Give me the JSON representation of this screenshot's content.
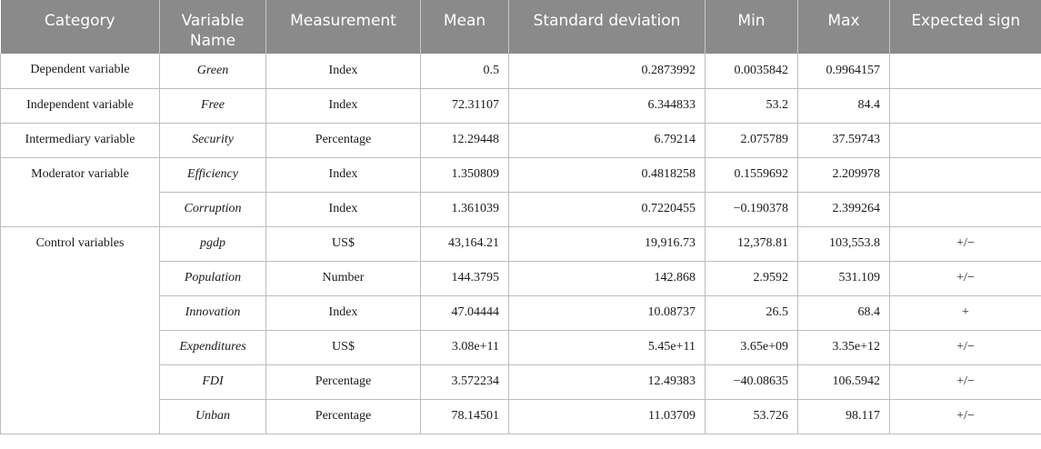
{
  "headers": {
    "category": "Category",
    "variable_name": "Variable Name",
    "measurement": "Measurement",
    "mean": "Mean",
    "std": "Standard deviation",
    "min": "Min",
    "max": "Max",
    "expected_sign": "Expected sign"
  },
  "categories": {
    "dependent": "Dependent variable",
    "independent": "Independent variable",
    "intermediary": "Intermediary variable",
    "moderator": "Moderator variable",
    "control": "Control variables"
  },
  "rows": [
    {
      "name": "Green",
      "measurement": "Index",
      "mean": "0.5",
      "std": "0.2873992",
      "min": "0.0035842",
      "max": "0.9964157",
      "sign": ""
    },
    {
      "name": "Free",
      "measurement": "Index",
      "mean": "72.31107",
      "std": "6.344833",
      "min": "53.2",
      "max": "84.4",
      "sign": ""
    },
    {
      "name": "Security",
      "measurement": "Percentage",
      "mean": "12.29448",
      "std": "6.79214",
      "min": "2.075789",
      "max": "37.59743",
      "sign": ""
    },
    {
      "name": "Efficiency",
      "measurement": "Index",
      "mean": "1.350809",
      "std": "0.4818258",
      "min": "0.1559692",
      "max": "2.209978",
      "sign": ""
    },
    {
      "name": "Corruption",
      "measurement": "Index",
      "mean": "1.361039",
      "std": "0.7220455",
      "min": "−0.190378",
      "max": "2.399264",
      "sign": ""
    },
    {
      "name": "pgdp",
      "measurement": "US$",
      "mean": "43,164.21",
      "std": "19,916.73",
      "min": "12,378.81",
      "max": "103,553.8",
      "sign": "+/−"
    },
    {
      "name": "Population",
      "measurement": "Number",
      "mean": "144.3795",
      "std": "142.868",
      "min": "2.9592",
      "max": "531.109",
      "sign": "+/−"
    },
    {
      "name": "Innovation",
      "measurement": "Index",
      "mean": "47.04444",
      "std": "10.08737",
      "min": "26.5",
      "max": "68.4",
      "sign": "+"
    },
    {
      "name": "Expenditures",
      "measurement": "US$",
      "mean": "3.08e+11",
      "std": "5.45e+11",
      "min": "3.65e+09",
      "max": "3.35e+12",
      "sign": "+/−"
    },
    {
      "name": "FDI",
      "measurement": "Percentage",
      "mean": "3.572234",
      "std": "12.49383",
      "min": "−40.08635",
      "max": "106.5942",
      "sign": "+/−"
    },
    {
      "name": "Unban",
      "measurement": "Percentage",
      "mean": "78.14501",
      "std": "11.03709",
      "min": "53.726",
      "max": "98.117",
      "sign": "+/−"
    }
  ]
}
